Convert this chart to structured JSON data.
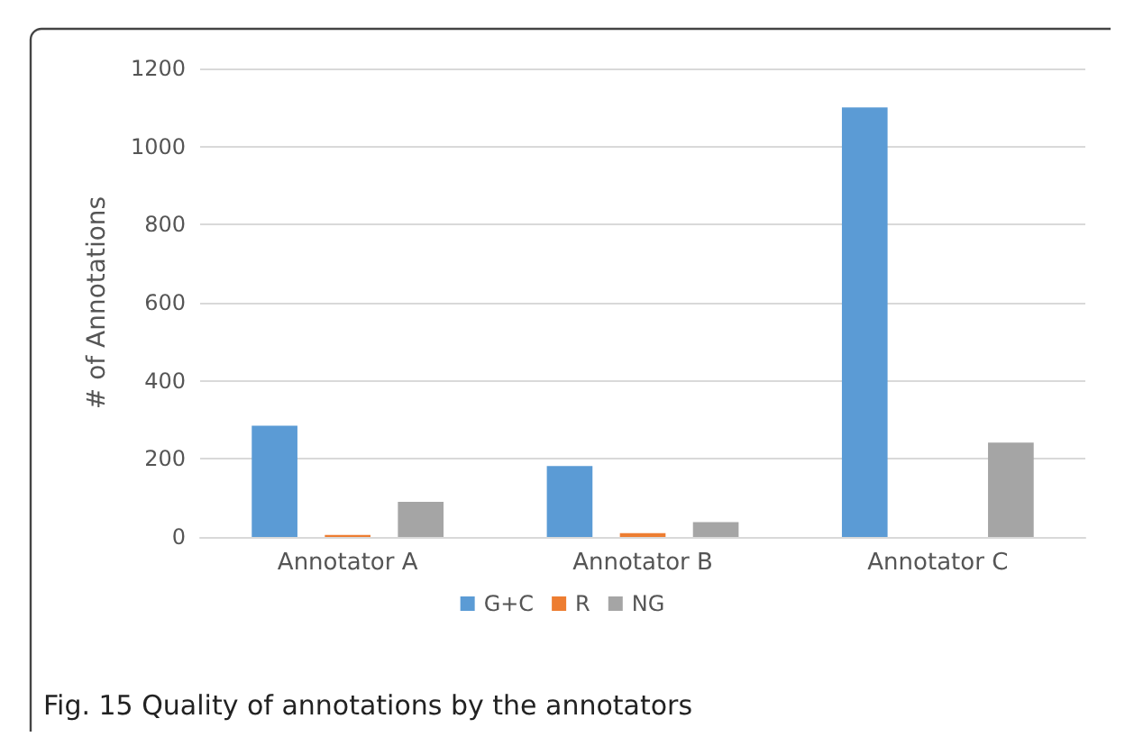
{
  "chart_data": {
    "type": "bar",
    "categories": [
      "Annotator A",
      "Annotator B",
      "Annotator C"
    ],
    "series": [
      {
        "name": "G+C",
        "color": "#5b9bd5",
        "values": [
          285,
          182,
          1100
        ]
      },
      {
        "name": "R",
        "color": "#ed7d31",
        "values": [
          5,
          10,
          0
        ]
      },
      {
        "name": "NG",
        "color": "#a5a5a5",
        "values": [
          90,
          38,
          242
        ]
      }
    ],
    "ylabel": "# of Annotations",
    "ylim": [
      0,
      1200
    ],
    "yticks": [
      0,
      200,
      400,
      600,
      800,
      1000,
      1200
    ],
    "grid": "y",
    "legend": "bottom",
    "annotations": [
      "Fig. 15 Quality of annotations by the annotators"
    ]
  }
}
